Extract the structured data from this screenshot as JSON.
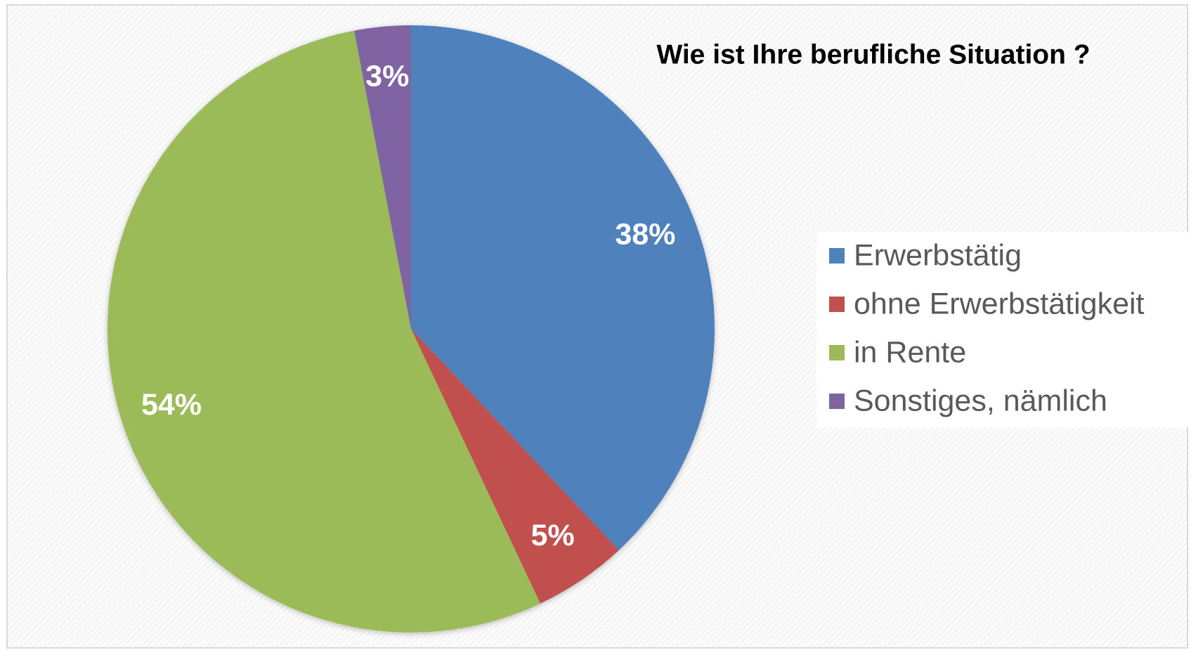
{
  "chart_data": {
    "type": "pie",
    "title": "Wie ist Ihre berufliche Situation ?",
    "categories": [
      "Erwerbstätig",
      "ohne Erwerbstätigkeit",
      "in Rente",
      "Sonstiges, nämlich"
    ],
    "values": [
      38,
      5,
      54,
      3
    ],
    "value_labels": [
      "38%",
      "5%",
      "54%",
      "3%"
    ],
    "colors": [
      "#4f81bd",
      "#c0504d",
      "#9bbb59",
      "#8064a2"
    ],
    "legend": "right"
  }
}
